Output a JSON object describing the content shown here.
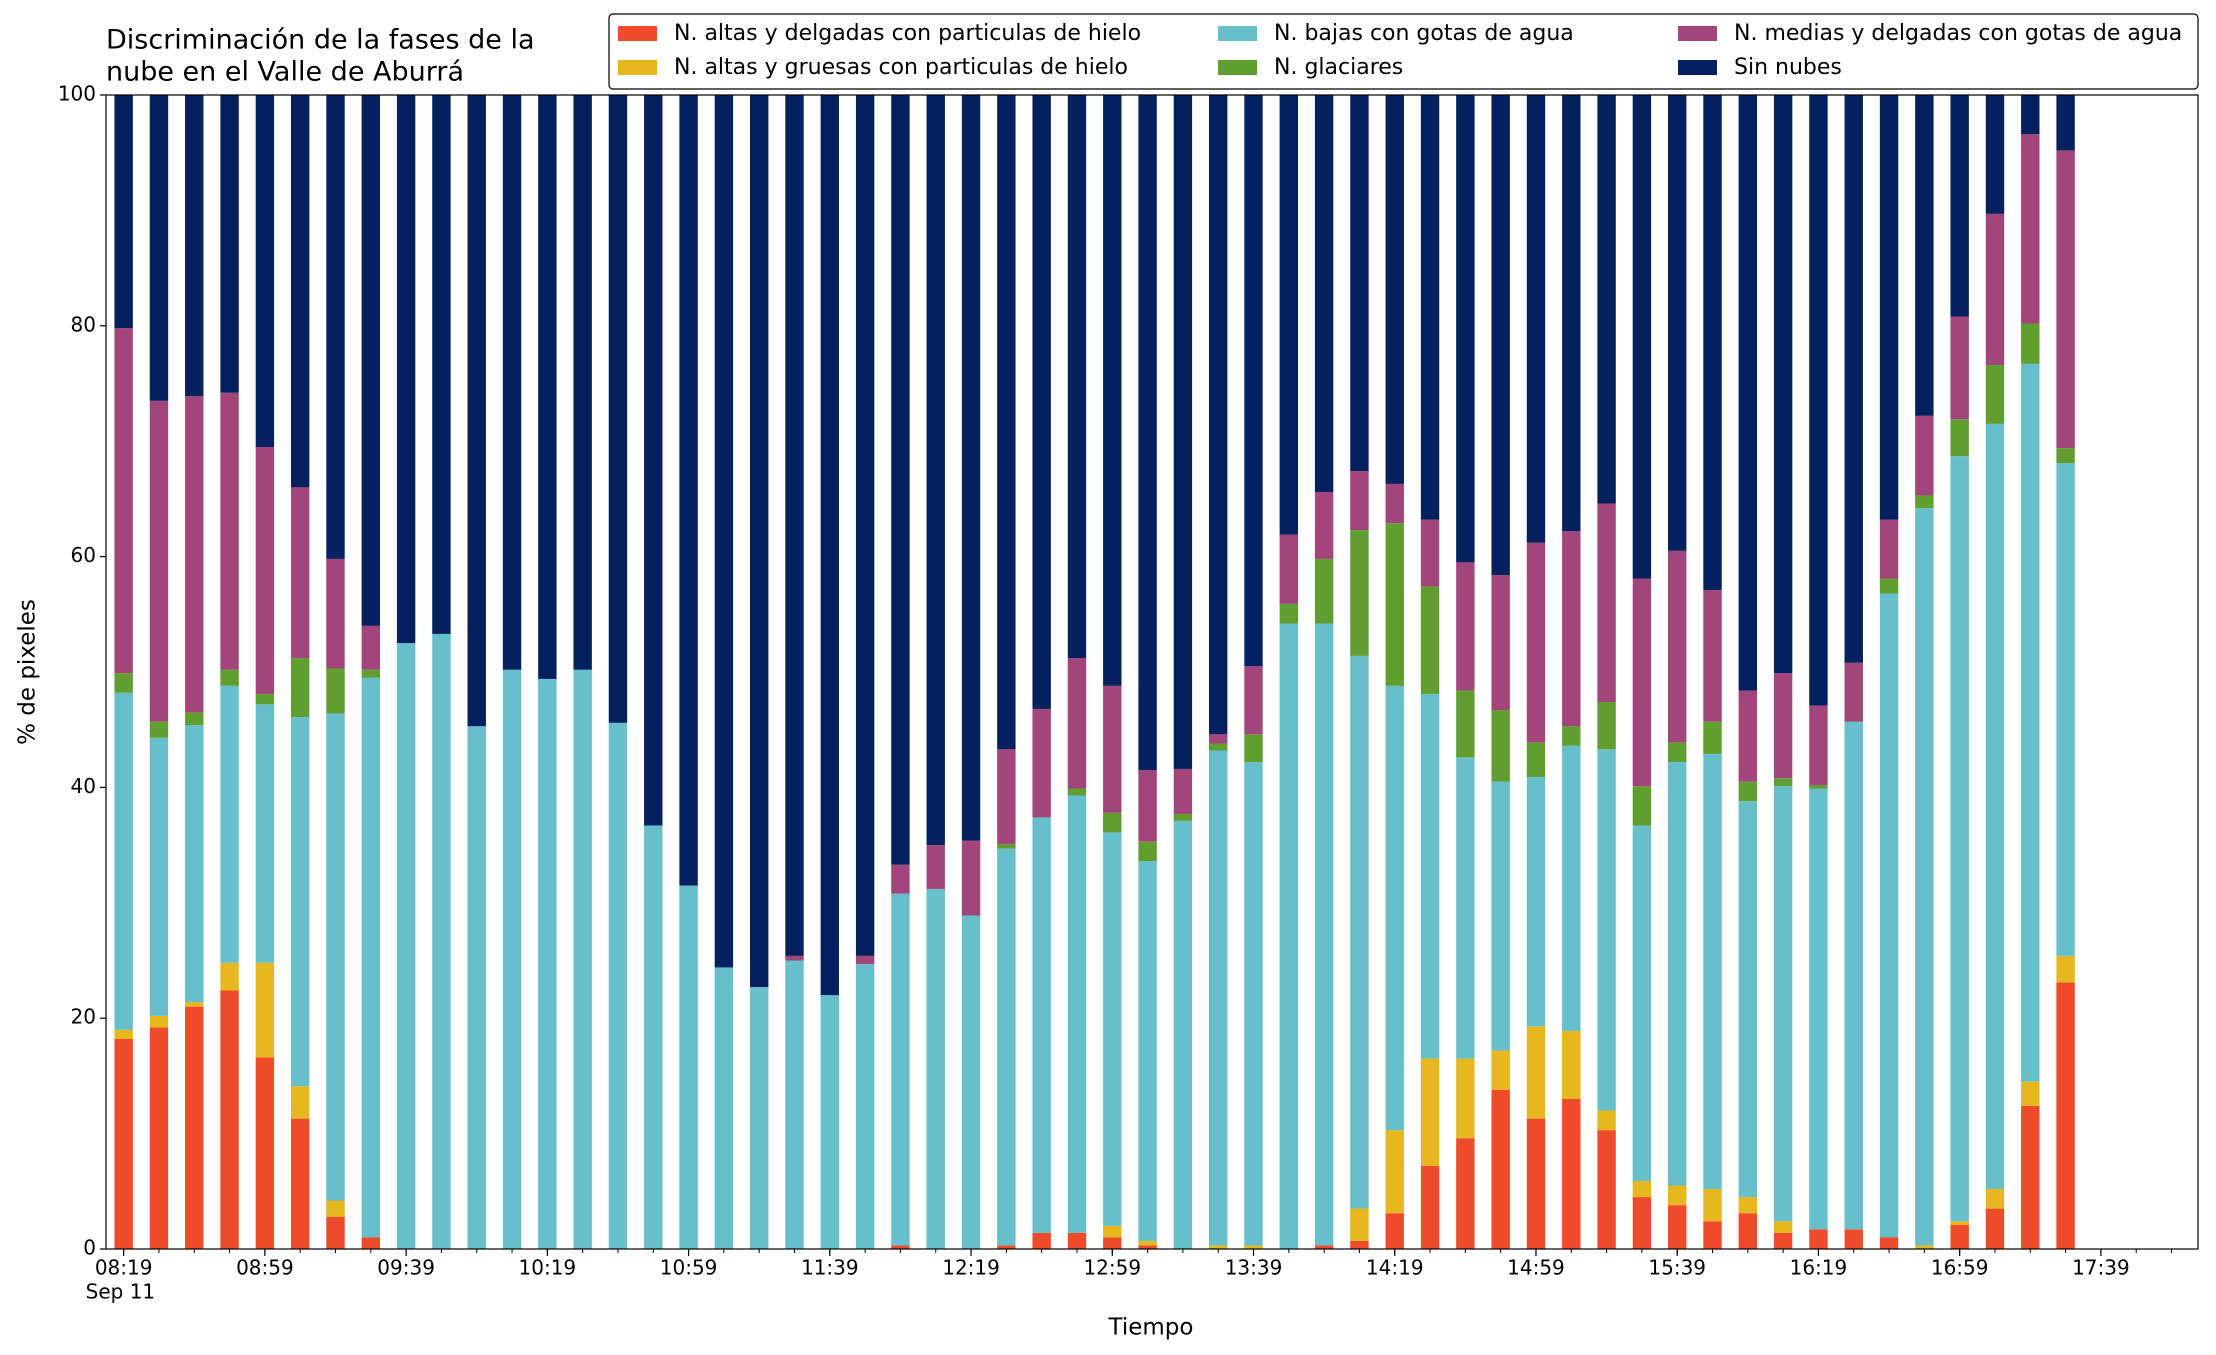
{
  "chart_data": {
    "type": "stacked_bar",
    "title": [
      "Discriminación de la fases de la",
      "nube en el Valle de Aburrá"
    ],
    "xlabel": "Tiempo",
    "ylabel": "% de pixeles",
    "x_date": "Sep 11",
    "x": [
      0,
      1,
      2,
      3,
      4,
      5,
      6,
      7,
      8,
      9,
      10,
      11,
      12,
      13,
      14,
      15,
      16,
      17,
      18,
      19,
      20,
      21,
      22,
      23,
      24,
      25,
      26,
      27,
      28,
      29,
      30,
      31,
      32,
      33,
      34,
      35,
      36,
      37,
      38,
      39,
      40,
      41,
      42,
      43,
      44,
      45,
      46,
      47,
      48,
      49,
      50,
      51,
      52,
      53,
      54,
      55
    ],
    "xlim": [
      -0.5,
      58.75
    ],
    "xticks": [
      {
        "value": 0,
        "label": "08:19"
      },
      {
        "value": 4,
        "label": "08:59"
      },
      {
        "value": 8,
        "label": "09:39"
      },
      {
        "value": 12,
        "label": "10:19"
      },
      {
        "value": 16,
        "label": "10:59"
      },
      {
        "value": 20,
        "label": "11:39"
      },
      {
        "value": 24,
        "label": "12:19"
      },
      {
        "value": 28,
        "label": "12:59"
      },
      {
        "value": 32,
        "label": "13:39"
      },
      {
        "value": 36,
        "label": "14:19"
      },
      {
        "value": 40,
        "label": "14:59"
      },
      {
        "value": 44,
        "label": "15:39"
      },
      {
        "value": 48,
        "label": "16:19"
      },
      {
        "value": 52,
        "label": "16:59"
      },
      {
        "value": 56,
        "label": "17:39"
      }
    ],
    "ylim": [
      0,
      100
    ],
    "yticks": [
      0,
      20,
      40,
      60,
      80,
      100
    ],
    "legend": "top-right",
    "series": [
      {
        "name": "N. altas y delgadas con particulas de hielo",
        "color": "#ee4b2b",
        "values": [
          18.2,
          19.2,
          21,
          22.4,
          16.6,
          11.3,
          2.8,
          1,
          0,
          0,
          0,
          0,
          0,
          0,
          0,
          0,
          0,
          0,
          0,
          0,
          0,
          0,
          0.3,
          0,
          0,
          0.3,
          1.4,
          1.4,
          1,
          0.3,
          0,
          0,
          0,
          0,
          0.3,
          0.7,
          3.1,
          7.2,
          9.6,
          13.8,
          11.3,
          13,
          10.3,
          4.5,
          3.8,
          2.4,
          3.1,
          1.4,
          1.7,
          1.7,
          1,
          0,
          2.1,
          3.5,
          12.4,
          23.1
        ]
      },
      {
        "name": "N. altas y gruesas con particulas de hielo",
        "color": "#e6b71e",
        "values": [
          0.8,
          1,
          0.4,
          2.4,
          8.2,
          2.8,
          1.4,
          0,
          0,
          0,
          0,
          0,
          0,
          0,
          0,
          0,
          0,
          0,
          0,
          0,
          0,
          0,
          0,
          0,
          0,
          0,
          0,
          0,
          1,
          0.4,
          0,
          0.3,
          0.3,
          0,
          0,
          2.8,
          7.2,
          9.3,
          6.9,
          3.4,
          8,
          5.9,
          1.7,
          1.4,
          1.7,
          2.8,
          1.4,
          1,
          0,
          0,
          0,
          0.3,
          0.3,
          1.7,
          2.1,
          2.3
        ]
      },
      {
        "name": "N. bajas con gotas de agua",
        "color": "#67bfcc",
        "values": [
          29.2,
          24.1,
          24,
          24,
          22.4,
          32,
          42.2,
          48.5,
          52.5,
          53.3,
          45.3,
          50.2,
          49.4,
          50.2,
          45.6,
          36.7,
          31.5,
          24.4,
          22.7,
          25,
          22,
          24.7,
          30.5,
          31.2,
          28.9,
          34.4,
          36,
          37.9,
          34.1,
          32.9,
          37.1,
          42.9,
          41.9,
          54.2,
          53.9,
          47.9,
          38.5,
          31.6,
          26.1,
          23.3,
          21.6,
          24.7,
          31.3,
          30.8,
          36.7,
          37.7,
          34.3,
          37.7,
          38.2,
          44,
          55.8,
          63.9,
          66.3,
          66.3,
          62.2,
          42.7
        ]
      },
      {
        "name": "N. glaciares",
        "color": "#5f9e2f",
        "values": [
          1.7,
          1.4,
          1.1,
          1.4,
          0.9,
          5.1,
          3.9,
          0.7,
          0,
          0,
          0,
          0,
          0,
          0,
          0,
          0,
          0,
          0,
          0,
          0,
          0,
          0,
          0,
          0,
          0,
          0.4,
          0,
          0.6,
          1.7,
          1.7,
          0.6,
          0.6,
          2.4,
          1.7,
          5.6,
          10.9,
          14.1,
          9.3,
          5.8,
          6.2,
          3,
          1.7,
          4.1,
          3.4,
          1.7,
          2.8,
          1.7,
          0.7,
          0.3,
          0,
          1.3,
          1.1,
          3.2,
          5.1,
          3.5,
          1.3
        ]
      },
      {
        "name": "N. medias y delgadas con gotas de agua",
        "color": "#a2457a",
        "values": [
          29.9,
          27.8,
          27.4,
          24,
          21.4,
          14.8,
          9.5,
          3.8,
          0,
          0,
          0,
          0,
          0,
          0,
          0,
          0,
          0,
          0,
          0,
          0.4,
          0,
          0.7,
          2.5,
          3.8,
          6.5,
          8.2,
          9.4,
          11.3,
          11,
          6.2,
          3.9,
          0.8,
          5.9,
          6,
          5.8,
          5.1,
          3.4,
          5.8,
          11.1,
          11.7,
          17.3,
          16.9,
          17.2,
          18,
          16.6,
          11.4,
          7.9,
          9.1,
          6.9,
          5.1,
          5.1,
          6.9,
          8.9,
          13.1,
          16.4,
          25.8
        ]
      },
      {
        "name": "Sin nubes",
        "color": "#04205e",
        "values": [
          20.2,
          26.5,
          26.1,
          25.8,
          30.5,
          34,
          40.2,
          46,
          47.5,
          46.7,
          54.7,
          49.8,
          50.6,
          49.8,
          54.4,
          63.3,
          68.5,
          75.6,
          77.3,
          74.6,
          78,
          74.6,
          66.7,
          65,
          64.6,
          56.7,
          53.2,
          48.8,
          51.2,
          58.5,
          58.4,
          55.4,
          49.5,
          38.1,
          34.4,
          32.6,
          33.7,
          36.8,
          40.5,
          41.6,
          38.8,
          37.8,
          35.4,
          41.9,
          39.5,
          42.9,
          51.6,
          50.1,
          52.9,
          49.2,
          36.8,
          27.8,
          19.2,
          10.3,
          3.4,
          4.8
        ]
      }
    ]
  }
}
